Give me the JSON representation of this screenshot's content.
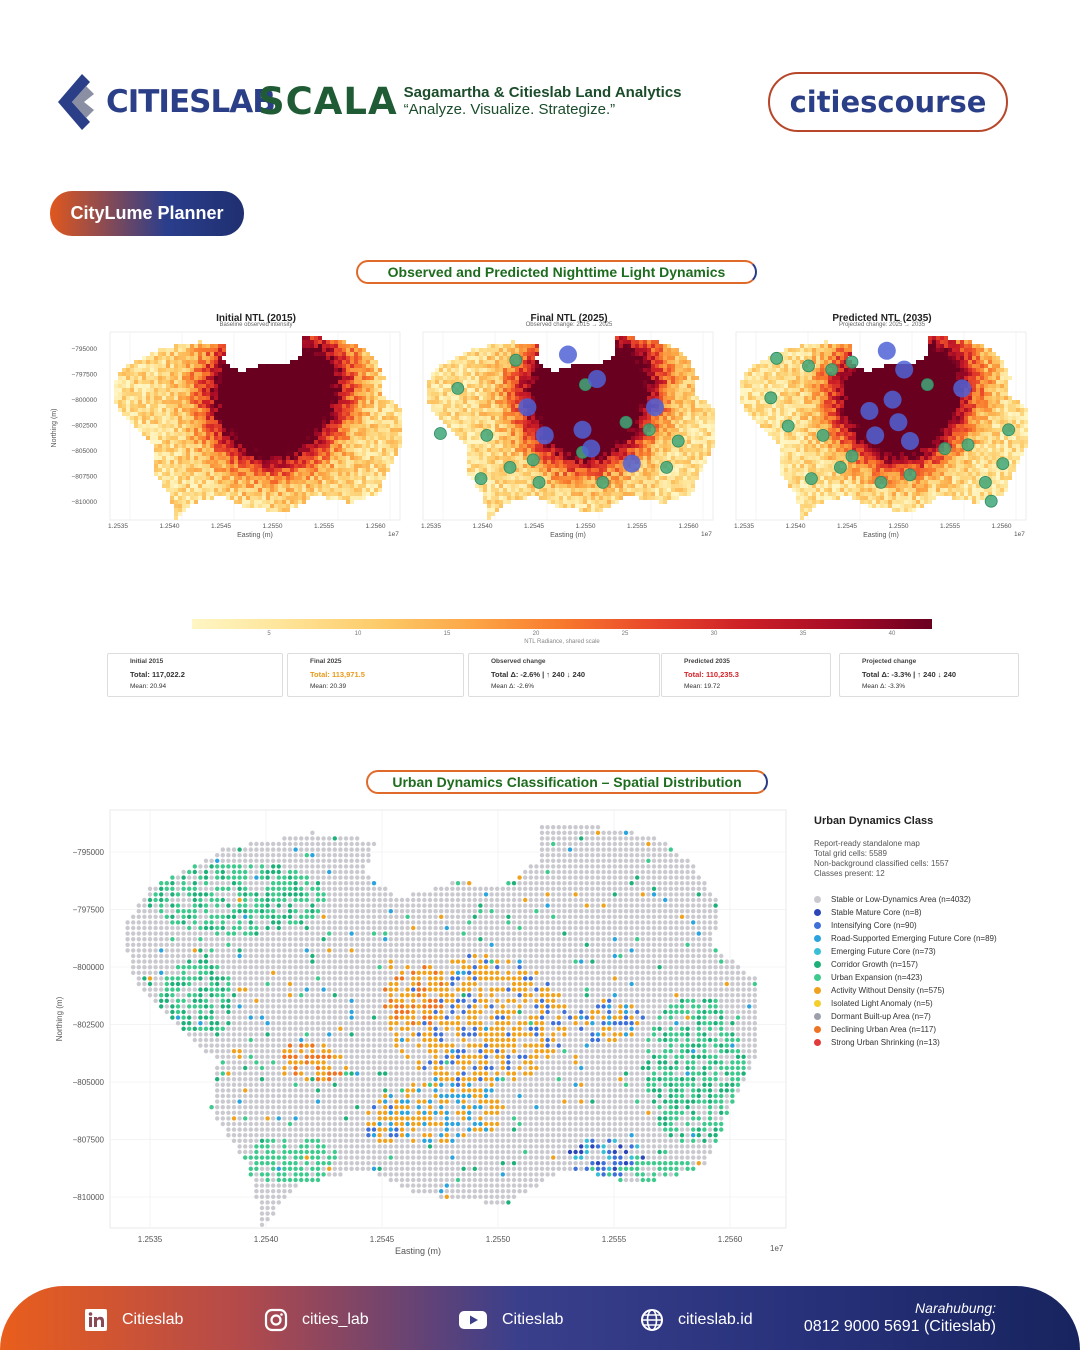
{
  "header": {
    "citieslab_logo": "CITIESLAB",
    "scala_logo": "SCALA",
    "scala_name": "Sagamartha & Citieslab Land Analytics",
    "scala_tagline": "“Analyze. Visualize. Strategize.”",
    "citiescourse_logo": "citiescourse"
  },
  "badge": "CityLume Planner",
  "section1_title": "Observed and Predicted Nighttime Light Dynamics",
  "section2_title": "Urban Dynamics Classification – Spatial Distribution",
  "colors": {
    "accent_orange": "#e06a2a",
    "accent_navy": "#2a3b86",
    "title_green": "#1e6c1e",
    "expansion_green": "#3dbb7e",
    "core_blue": "#4f62d6"
  },
  "ntl_panels": [
    {
      "title": "Initial NTL (2015)",
      "subtitle": "Baseline observed intensity"
    },
    {
      "title": "Final NTL (2025)",
      "subtitle": "Observed change: 2015 → 2025"
    },
    {
      "title": "Predicted NTL (2035)",
      "subtitle": "Projected change: 2025 → 2035"
    }
  ],
  "small_axes": {
    "xlabel": "Easting (m)",
    "ylabel": "Northing (m)",
    "xticks": [
      "1.2535",
      "1.2540",
      "1.2545",
      "1.2550",
      "1.2555",
      "1.2560"
    ],
    "yticks": [
      "−795000",
      "−797500",
      "−800000",
      "−802500",
      "−805000",
      "−807500",
      "−810000"
    ],
    "offset": "1e7"
  },
  "colorbar": {
    "label": "NTL Radiance, shared scale",
    "ticks": [
      "5",
      "10",
      "15",
      "20",
      "25",
      "30",
      "35",
      "40"
    ]
  },
  "stats": [
    {
      "title": "Initial 2015",
      "value": "Total: 117,022.2",
      "mean": "Mean: 20.94",
      "color": "#333333"
    },
    {
      "title": "Final 2025",
      "value": "Total: 113,971.5",
      "mean": "Mean: 20.39",
      "color": "#e89a1a"
    },
    {
      "title": "Observed change",
      "value": "Total Δ: -2.6% | ↑ 240  ↓ 240",
      "mean": "Mean Δ: -2.6%",
      "color": "#222222"
    },
    {
      "title": "Predicted 2035",
      "value": "Total: 110,235.3",
      "mean": "Mean: 19.72",
      "color": "#d4242a"
    },
    {
      "title": "Projected change",
      "value": "Total Δ: -3.3% | ↑ 240  ↓ 240",
      "mean": "Mean Δ: -3.3%",
      "color": "#222222"
    }
  ],
  "big_axes": {
    "xlabel": "Easting (m)",
    "ylabel": "Northing (m)",
    "xticks": [
      "1.2535",
      "1.2540",
      "1.2545",
      "1.2550",
      "1.2555",
      "1.2560"
    ],
    "yticks": [
      "−795000",
      "−797500",
      "−800000",
      "−802500",
      "−805000",
      "−807500",
      "−810000"
    ],
    "offset": "1e7"
  },
  "legend": {
    "title": "Urban Dynamics Class",
    "info": [
      "Report-ready standalone map",
      "Total grid cells: 5589",
      "Non-background classified cells: 1557",
      "Classes present: 12"
    ],
    "items": [
      {
        "label": "Stable or Low-Dynamics Area (n=4032)",
        "color": "#c9c9cf"
      },
      {
        "label": "Stable Mature Core (n=8)",
        "color": "#2c46b8"
      },
      {
        "label": "Intensifying Core (n=90)",
        "color": "#3f6fd8"
      },
      {
        "label": "Road-Supported Emerging Future Core (n=89)",
        "color": "#2aa3df"
      },
      {
        "label": "Emerging Future Core (n=73)",
        "color": "#38bfd6"
      },
      {
        "label": "Corridor Growth (n=157)",
        "color": "#1fb07a"
      },
      {
        "label": "Urban Expansion (n=423)",
        "color": "#3ec98d"
      },
      {
        "label": "Activity Without Density (n=575)",
        "color": "#f0a21e"
      },
      {
        "label": "Isolated Light Anomaly (n=5)",
        "color": "#f2cf2b"
      },
      {
        "label": "Dormant Built-up Area (n=7)",
        "color": "#9da0ab"
      },
      {
        "label": "Declining Urban Area (n=117)",
        "color": "#ee7424"
      },
      {
        "label": "Strong Urban Shrinking (n=13)",
        "color": "#e23b3b"
      }
    ]
  },
  "chart_data": [
    {
      "type": "heatmap",
      "title": "Initial NTL (2015)",
      "subtitle": "Baseline observed intensity",
      "xlabel": "Easting (m)",
      "ylabel": "Northing (m)",
      "xlim": [
        12533000,
        12561500
      ],
      "ylim": [
        -811500,
        -793500
      ],
      "value_range": [
        0,
        43
      ],
      "colorbar_label": "NTL Radiance, shared scale"
    },
    {
      "type": "heatmap",
      "title": "Final NTL (2025)",
      "subtitle": "Observed change: 2015 → 2025",
      "xlabel": "Easting (m)",
      "ylabel": "Northing (m)",
      "xlim": [
        12533000,
        12561500
      ],
      "ylim": [
        -811500,
        -793500
      ],
      "value_range": [
        0,
        43
      ]
    },
    {
      "type": "heatmap",
      "title": "Predicted NTL (2035)",
      "subtitle": "Projected change: 2025 → 2035",
      "xlabel": "Easting (m)",
      "ylabel": "Northing (m)",
      "xlim": [
        12533000,
        12561500
      ],
      "ylim": [
        -811500,
        -793500
      ],
      "value_range": [
        0,
        43
      ]
    },
    {
      "type": "scatter",
      "title": "Urban Dynamics Class",
      "xlabel": "Easting (m)",
      "ylabel": "Northing (m)",
      "xlim": [
        12533000,
        12562500
      ],
      "ylim": [
        -811000,
        -793500
      ],
      "legend_position": "right",
      "series": [
        {
          "name": "Stable or Low-Dynamics Area",
          "count": 4032
        },
        {
          "name": "Stable Mature Core",
          "count": 8
        },
        {
          "name": "Intensifying Core",
          "count": 90
        },
        {
          "name": "Road-Supported Emerging Future Core",
          "count": 89
        },
        {
          "name": "Emerging Future Core",
          "count": 73
        },
        {
          "name": "Corridor Growth",
          "count": 157
        },
        {
          "name": "Urban Expansion",
          "count": 423
        },
        {
          "name": "Activity Without Density",
          "count": 575
        },
        {
          "name": "Isolated Light Anomaly",
          "count": 5
        },
        {
          "name": "Dormant Built-up Area",
          "count": 7
        },
        {
          "name": "Declining Urban Area",
          "count": 117
        },
        {
          "name": "Strong Urban Shrinking",
          "count": 13
        }
      ]
    }
  ],
  "footer": {
    "linkedin": "Citieslab",
    "instagram": "cities_lab",
    "youtube": "Citieslab",
    "website": "citieslab.id",
    "contact_label": "Narahubung:",
    "contact_value": "0812 9000 5691 (Citieslab)"
  }
}
